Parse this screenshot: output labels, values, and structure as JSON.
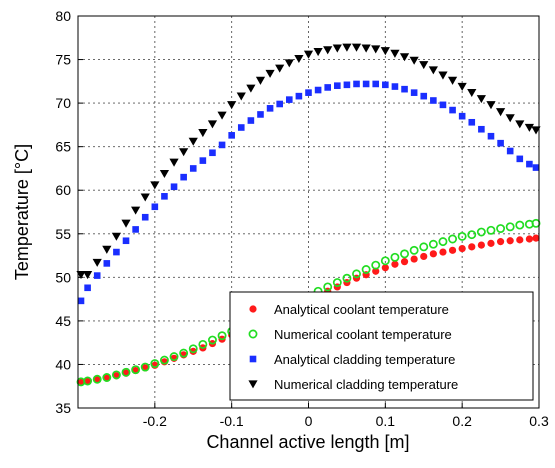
{
  "chart_data": {
    "type": "scatter",
    "title": "",
    "xlabel": "Channel active length [m]",
    "ylabel": "Temperature  [°C]",
    "xlim": [
      -0.3,
      0.3
    ],
    "ylim": [
      35,
      80
    ],
    "x_ticks": [
      -0.2,
      -0.1,
      0,
      0.1,
      0.2,
      0.3
    ],
    "y_ticks": [
      35,
      40,
      45,
      50,
      55,
      60,
      65,
      70,
      75,
      80
    ],
    "x_tick_labels": [
      "-0.2",
      "-0.1",
      "0",
      "0.1",
      "0.2",
      "0.3"
    ],
    "y_tick_labels": [
      "35",
      "40",
      "45",
      "50",
      "55",
      "60",
      "65",
      "70",
      "75",
      "80"
    ],
    "grid": true,
    "legend_position": "bottom-right",
    "x": [
      -0.3,
      -0.2875,
      -0.275,
      -0.2625,
      -0.25,
      -0.2375,
      -0.225,
      -0.2125,
      -0.2,
      -0.1875,
      -0.175,
      -0.1625,
      -0.15,
      -0.1375,
      -0.125,
      -0.1125,
      -0.1,
      -0.0875,
      -0.075,
      -0.0625,
      -0.05,
      -0.0375,
      -0.025,
      -0.0125,
      0.0,
      0.0125,
      0.025,
      0.0375,
      0.05,
      0.0625,
      0.075,
      0.0875,
      0.1,
      0.1125,
      0.125,
      0.1375,
      0.15,
      0.1625,
      0.175,
      0.1875,
      0.2,
      0.2125,
      0.225,
      0.2375,
      0.25,
      0.2625,
      0.275,
      0.2875,
      0.3
    ],
    "series": [
      {
        "name": "Analytical coolant temperature",
        "marker": "circle-filled",
        "color": "#ff1a1a",
        "values": [
          38.0,
          38.1,
          38.3,
          38.5,
          38.7,
          39.0,
          39.3,
          39.6,
          39.9,
          40.3,
          40.7,
          41.1,
          41.5,
          41.9,
          42.4,
          42.9,
          43.4,
          43.9,
          44.4,
          44.9,
          45.4,
          45.9,
          46.4,
          46.9,
          47.4,
          47.9,
          48.4,
          48.9,
          49.4,
          49.9,
          50.3,
          50.7,
          51.1,
          51.5,
          51.8,
          52.1,
          52.4,
          52.7,
          52.9,
          53.1,
          53.3,
          53.5,
          53.7,
          53.9,
          54.1,
          54.2,
          54.3,
          54.4,
          54.5
        ]
      },
      {
        "name": "Numerical coolant temperature",
        "marker": "circle-open",
        "color": "#22dd22",
        "values": [
          38.0,
          38.1,
          38.3,
          38.5,
          38.8,
          39.1,
          39.4,
          39.7,
          40.1,
          40.5,
          40.9,
          41.3,
          41.8,
          42.3,
          42.8,
          43.3,
          43.8,
          44.3,
          44.8,
          45.3,
          45.8,
          46.3,
          46.8,
          47.3,
          47.8,
          48.4,
          48.9,
          49.4,
          49.9,
          50.4,
          50.9,
          51.4,
          51.9,
          52.3,
          52.7,
          53.1,
          53.5,
          53.8,
          54.1,
          54.4,
          54.7,
          54.9,
          55.2,
          55.4,
          55.6,
          55.8,
          56.0,
          56.1,
          56.2
        ]
      },
      {
        "name": "Analytical cladding temperature",
        "marker": "square-filled",
        "color": "#1a2eff",
        "values": [
          47.3,
          48.8,
          50.2,
          51.6,
          52.9,
          54.2,
          55.5,
          56.9,
          58.1,
          59.3,
          60.4,
          61.5,
          62.5,
          63.4,
          64.3,
          65.2,
          66.3,
          67.2,
          68.0,
          68.7,
          69.4,
          69.9,
          70.4,
          70.8,
          71.2,
          71.5,
          71.8,
          72.0,
          72.1,
          72.2,
          72.2,
          72.2,
          72.1,
          71.9,
          71.6,
          71.2,
          70.8,
          70.3,
          69.8,
          69.2,
          68.5,
          67.8,
          67.0,
          66.2,
          65.4,
          64.5,
          63.6,
          63.0,
          62.6
        ]
      },
      {
        "name": "Numerical cladding temperature",
        "marker": "triangle-down",
        "color": "#000000",
        "values": [
          50.3,
          50.3,
          51.7,
          53.2,
          54.7,
          56.2,
          57.7,
          59.2,
          60.6,
          61.9,
          63.2,
          64.4,
          65.6,
          66.6,
          67.6,
          68.6,
          69.8,
          70.8,
          71.7,
          72.6,
          73.4,
          74.0,
          74.6,
          75.1,
          75.6,
          75.9,
          76.1,
          76.3,
          76.4,
          76.4,
          76.3,
          76.2,
          76.0,
          75.7,
          75.3,
          74.9,
          74.4,
          73.8,
          73.2,
          72.6,
          71.9,
          71.2,
          70.5,
          69.8,
          69.0,
          68.3,
          67.6,
          67.2,
          66.9
        ]
      }
    ]
  }
}
